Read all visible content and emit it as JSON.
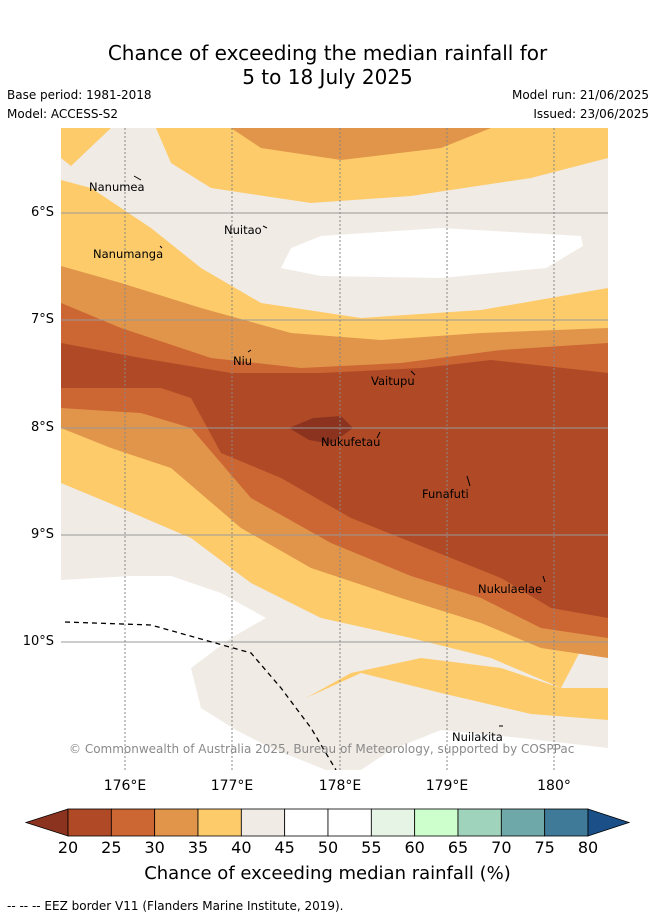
{
  "title_line1": "Chance of exceeding the median rainfall for",
  "title_line2": "5 to 18 July 2025",
  "base_period": "Base period: 1981-2018",
  "model": "Model: ACCESS-S2",
  "model_run": "Model run: 21/06/2025",
  "issued": "Issued: 23/06/2025",
  "lat_labels": [
    "6°S",
    "7°S",
    "8°S",
    "9°S",
    "10°S"
  ],
  "lon_labels": [
    "176°E",
    "177°E",
    "178°E",
    "179°E",
    "180°"
  ],
  "islands": [
    "Nanumea",
    "Nuitao",
    "Nanumanga",
    "Niu",
    "Vaitupu",
    "Nukufetau",
    "Funafuti",
    "Nukulaelae",
    "Nuilakita"
  ],
  "credit": "© Commonwealth of Australia 2025, Bureau of Meteorology, supported by COSPPac",
  "colorbar": {
    "ticks": [
      "20",
      "25",
      "30",
      "35",
      "40",
      "45",
      "50",
      "55",
      "60",
      "65",
      "70",
      "75",
      "80"
    ],
    "label": "Chance of exceeding median rainfall (%)",
    "colors": [
      "#8c3320",
      "#b04a26",
      "#cc6633",
      "#e0954a",
      "#fdcb6a",
      "#f0ebe5",
      "#ffffff",
      "#ffffff",
      "#e6f4e6",
      "#ccffcc",
      "#9fd3bb",
      "#6fa8a8",
      "#3f7a99",
      "#1a4f88"
    ]
  },
  "footer": "--  --  -- EEZ border V11 (Flanders Marine Institute, 2019)."
}
